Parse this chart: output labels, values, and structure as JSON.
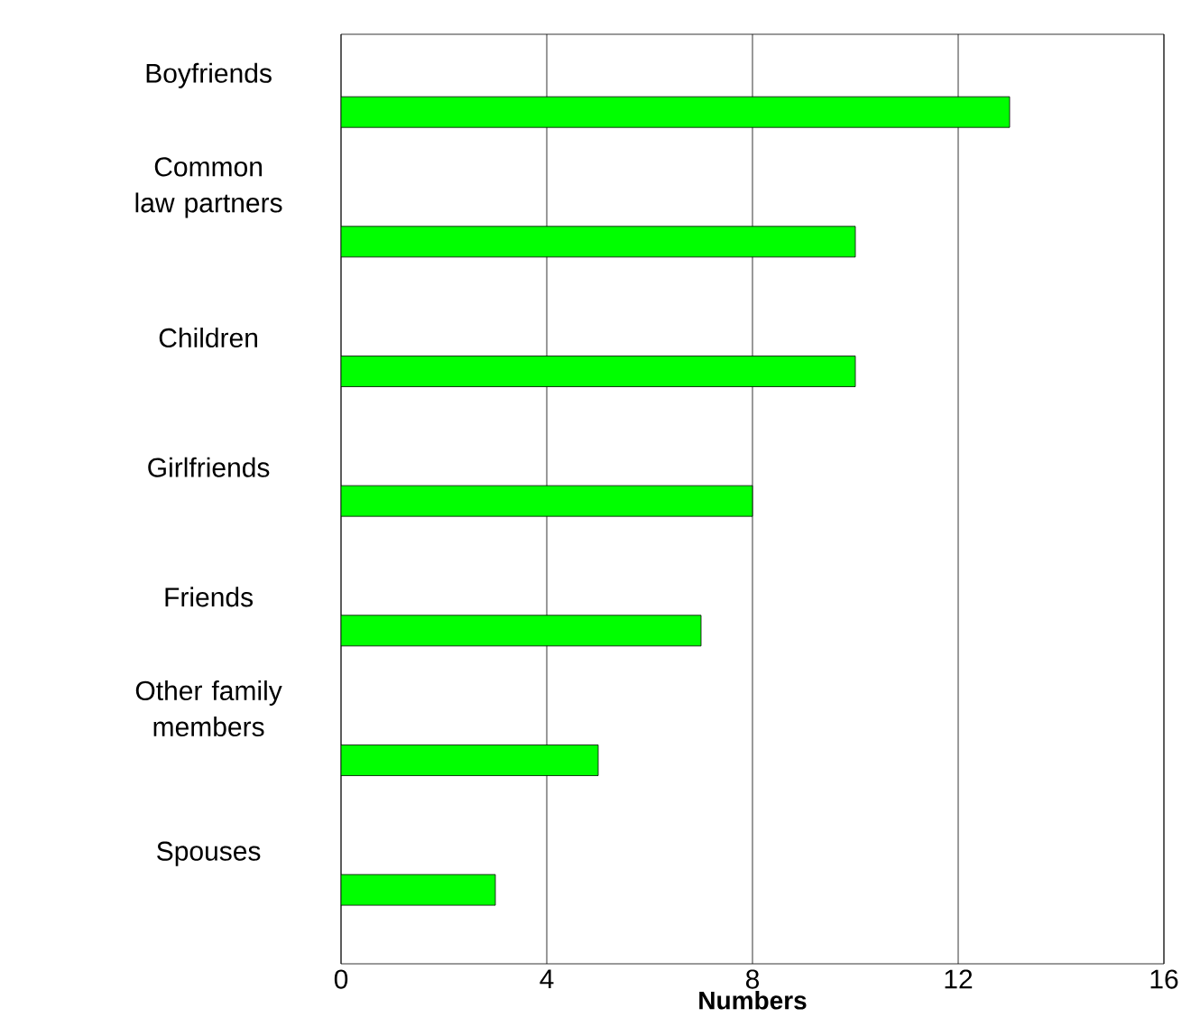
{
  "chart_data": {
    "type": "bar",
    "orientation": "horizontal",
    "xlabel": "Numbers",
    "categories": [
      "Boyfriends",
      "Common law partners",
      "Children",
      "Girlfriends",
      "Friends",
      "Other family members",
      "Spouses"
    ],
    "values": [
      13,
      10,
      10,
      8,
      7,
      5,
      3
    ],
    "color": "#00ff00",
    "xlim": [
      0,
      16
    ],
    "xticks": [
      0,
      4,
      8,
      12,
      16
    ],
    "grid": "x"
  }
}
